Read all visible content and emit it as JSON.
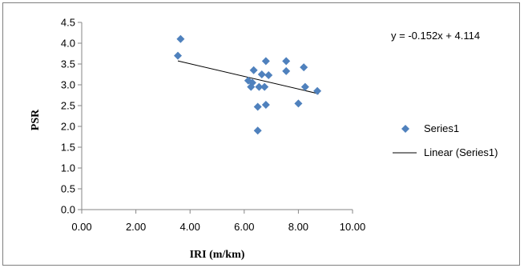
{
  "chart_data": {
    "type": "scatter",
    "title": "",
    "xlabel": "IRI (m/km)",
    "ylabel": "PSR",
    "xlim": [
      0,
      10
    ],
    "ylim": [
      0,
      4.5
    ],
    "x_ticks": [
      "0.00",
      "2.00",
      "4.00",
      "6.00",
      "8.00",
      "10.00"
    ],
    "y_ticks": [
      "0.0",
      "0.5",
      "1.0",
      "1.5",
      "2.0",
      "2.5",
      "3.0",
      "3.5",
      "4.0",
      "4.5"
    ],
    "grid": false,
    "legend_position": "right",
    "series": [
      {
        "name": "Series1",
        "marker": "diamond",
        "color": "#4f81bd",
        "points": [
          {
            "x": 3.55,
            "y": 3.7
          },
          {
            "x": 3.65,
            "y": 4.1
          },
          {
            "x": 6.15,
            "y": 3.1
          },
          {
            "x": 6.25,
            "y": 2.95
          },
          {
            "x": 6.3,
            "y": 3.05
          },
          {
            "x": 6.35,
            "y": 3.35
          },
          {
            "x": 6.5,
            "y": 2.47
          },
          {
            "x": 6.5,
            "y": 1.9
          },
          {
            "x": 6.55,
            "y": 2.95
          },
          {
            "x": 6.65,
            "y": 3.25
          },
          {
            "x": 6.75,
            "y": 2.95
          },
          {
            "x": 6.8,
            "y": 3.57
          },
          {
            "x": 6.8,
            "y": 2.52
          },
          {
            "x": 6.9,
            "y": 3.23
          },
          {
            "x": 7.55,
            "y": 3.57
          },
          {
            "x": 7.55,
            "y": 3.33
          },
          {
            "x": 8.0,
            "y": 2.55
          },
          {
            "x": 8.2,
            "y": 3.42
          },
          {
            "x": 8.25,
            "y": 2.95
          },
          {
            "x": 8.7,
            "y": 2.85
          }
        ]
      }
    ],
    "trendline": {
      "name": "Linear (Series1)",
      "color": "#000000",
      "slope": -0.152,
      "intercept": 4.114,
      "x_start": 3.55,
      "x_end": 8.75,
      "equation": "y = -0.152x + 4.114"
    }
  }
}
